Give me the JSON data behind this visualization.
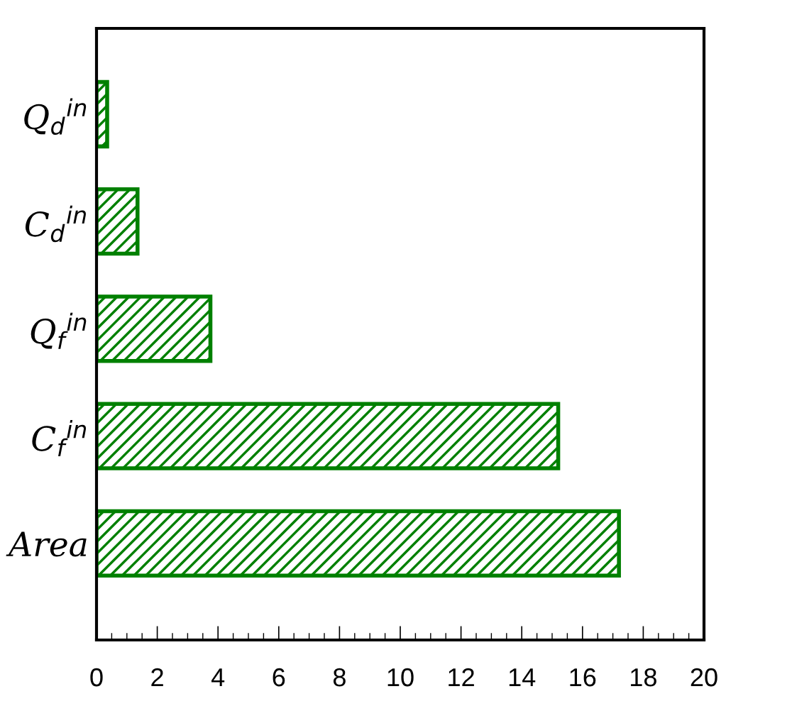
{
  "chart_data": {
    "type": "bar",
    "orientation": "horizontal",
    "categories": [
      "Q$_{d}$$^{in}$",
      "C$_{d}$$^{in}$",
      "Q$_{f}$$^{in}$",
      "C$_{f}$$^{in}$",
      "Area"
    ],
    "values": [
      0.35,
      1.35,
      3.75,
      15.2,
      17.2
    ],
    "color": "#008000",
    "xlim": [
      0,
      20
    ],
    "xticks": [
      0,
      2,
      4,
      6,
      8,
      10,
      12,
      14,
      16,
      18,
      20
    ],
    "grid": false,
    "legend": false
  }
}
